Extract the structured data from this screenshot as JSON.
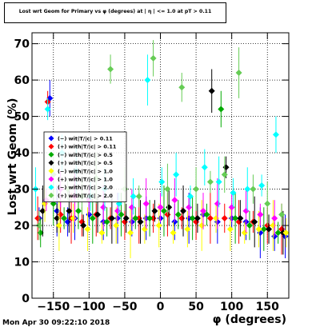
{
  "title": "Lost wrt Geom for Primary vs φ (degrees) at | η | <= 1.0 at pT > 0.11",
  "timestamp": "Mon Apr 30 09:22:10 2018",
  "chart_data": {
    "type": "scatter",
    "xlabel": "φ (degrees)",
    "ylabel": "Lost  wrt  Geom (%)",
    "xlim": [
      -180,
      180
    ],
    "ylim": [
      0,
      73
    ],
    "xticks": [
      -150,
      -100,
      -50,
      0,
      50,
      100,
      150
    ],
    "yticks": [
      0,
      10,
      20,
      30,
      40,
      50,
      60,
      70
    ],
    "grid": true,
    "legend_position": "left-center",
    "series": [
      {
        "name": "(−) wit|T/|c| > 0.11",
        "color": "#0000ff",
        "marker": "diamond",
        "x": [
          -170,
          -155,
          -145,
          -130,
          -120,
          -100,
          -80,
          -60,
          -40,
          -20,
          0,
          20,
          40,
          60,
          80,
          100,
          120,
          140,
          160,
          175
        ],
        "y": [
          22,
          55,
          24,
          21,
          22,
          23,
          21,
          22,
          21,
          22,
          22,
          21,
          22,
          23,
          21,
          22,
          21,
          18,
          17,
          17
        ]
      },
      {
        "name": "(+) with|T/|c| > 0.11",
        "color": "#ff0000",
        "marker": "diamond",
        "x": [
          -172,
          -158,
          -140,
          -125,
          -110,
          -90,
          -70,
          -50,
          -30,
          -10,
          10,
          30,
          50,
          70,
          90,
          110,
          130,
          150,
          170
        ],
        "y": [
          22,
          54,
          23,
          22,
          21,
          23,
          22,
          21,
          22,
          22,
          23,
          22,
          21,
          22,
          22,
          21,
          21,
          20,
          19
        ]
      },
      {
        "name": "(−) with|T/|c| > 0.5",
        "color": "#00aa00",
        "marker": "diamond",
        "x": [
          -168,
          -150,
          -135,
          -115,
          -95,
          -75,
          -55,
          -35,
          -15,
          5,
          25,
          45,
          65,
          85,
          105,
          125,
          145,
          165
        ],
        "y": [
          18,
          26,
          22,
          24,
          22,
          21,
          23,
          22,
          22,
          24,
          23,
          22,
          23,
          52,
          22,
          20,
          19,
          18
        ]
      },
      {
        "name": "(+) with|T/|c| > 0.5",
        "color": "#000000",
        "marker": "diamond",
        "x": [
          -165,
          -145,
          -128,
          -108,
          -88,
          -68,
          -48,
          -28,
          -8,
          12,
          32,
          52,
          72,
          92,
          112,
          132,
          152,
          172
        ],
        "y": [
          24,
          22,
          24,
          20,
          23,
          22,
          22,
          21,
          24,
          25,
          24,
          22,
          57,
          36,
          22,
          21,
          19,
          18
        ]
      },
      {
        "name": "(−) with|T/|c| > 1.0",
        "color": "#ffff00",
        "marker": "diamond",
        "x": [
          -162,
          -142,
          -122,
          -102,
          -82,
          -62,
          -42,
          -22,
          -2,
          18,
          38,
          58,
          78,
          98,
          118,
          138,
          158,
          176
        ],
        "y": [
          26,
          20,
          22,
          19,
          18,
          20,
          18,
          19,
          20,
          18,
          19,
          20,
          22,
          19,
          18,
          19,
          20,
          18
        ]
      },
      {
        "name": "(+) with|T/|c| > 1.0",
        "color": "#ff00ff",
        "marker": "diamond",
        "x": [
          -160,
          -140,
          -120,
          -100,
          -80,
          -60,
          -40,
          -20,
          0,
          20,
          40,
          60,
          80,
          100,
          120,
          140,
          160
        ],
        "y": [
          27,
          30,
          28,
          27,
          25,
          24,
          25,
          26,
          25,
          27,
          25,
          24,
          26,
          25,
          24,
          23,
          22
        ]
      },
      {
        "name": "(−) with|T/|c| > 2.0",
        "color": "#00ffff",
        "marker": "diamond",
        "x": [
          -175,
          -158,
          -138,
          -118,
          -98,
          -78,
          -58,
          -38,
          -18,
          2,
          22,
          42,
          62,
          82,
          102,
          122,
          142,
          162
        ],
        "y": [
          30,
          52,
          40,
          35,
          28,
          30,
          26,
          28,
          60,
          32,
          34,
          28,
          36,
          32,
          29,
          30,
          31,
          45
        ]
      },
      {
        "name": "(+) with|T/|c| > 2.0",
        "color": "#66cc55",
        "marker": "diamond",
        "x": [
          -170,
          -150,
          -130,
          -110,
          -90,
          -70,
          -50,
          -30,
          -10,
          10,
          30,
          50,
          70,
          90,
          110,
          130,
          150,
          170
        ],
        "y": [
          20,
          34,
          30,
          28,
          33,
          63,
          30,
          28,
          66,
          30,
          58,
          30,
          32,
          34,
          62,
          30,
          26,
          23
        ]
      }
    ]
  }
}
